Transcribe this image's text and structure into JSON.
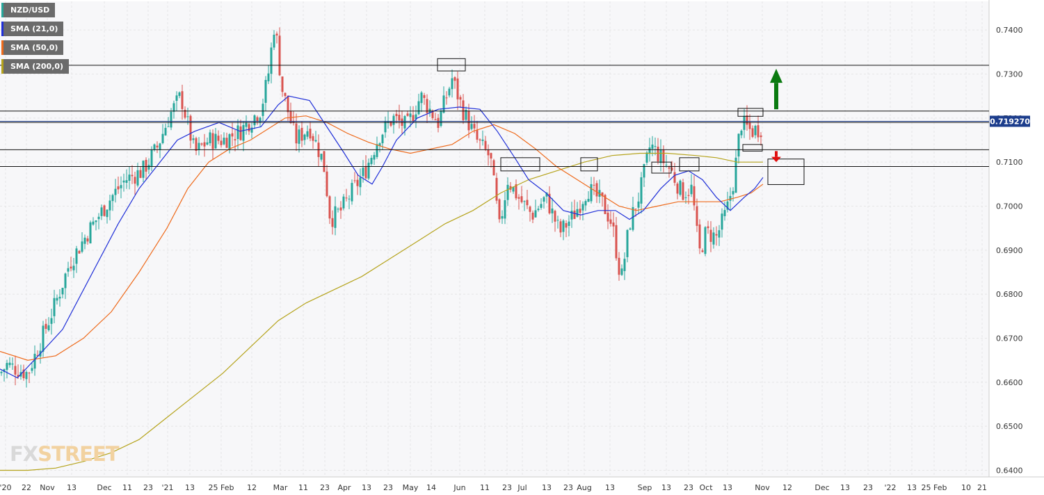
{
  "chart_data": {
    "type": "candlestick",
    "symbol": "NZD/USD",
    "price_label": "0.719270",
    "ylim": [
      0.6385,
      0.7465
    ],
    "y_ticks": [
      "0.7400",
      "0.7300",
      "0.7200",
      "0.7100",
      "0.7000",
      "0.6900",
      "0.6800",
      "0.6700",
      "0.6600",
      "0.6500",
      "0.6400"
    ],
    "x_ticks": [
      "'20",
      "22",
      "Nov",
      "13",
      "Dec",
      "11",
      "23",
      "'21",
      "13",
      "25 Feb",
      "12",
      "Mar",
      "11",
      "23",
      "Apr",
      "13",
      "23",
      "May",
      "14",
      "Jun",
      "11",
      "23",
      "Jul",
      "13",
      "23",
      "Aug",
      "13",
      "Sep",
      "13",
      "23",
      "Oct",
      "13",
      "Nov",
      "12",
      "Dec",
      "13",
      "23",
      "'22",
      "13",
      "25 Feb",
      "10",
      "21"
    ],
    "series": [
      {
        "name": "SMA (21,0)",
        "color": "#1f2fd8"
      },
      {
        "name": "SMA (50,0)",
        "color": "#ee6a1b"
      },
      {
        "name": "SMA (200,0)",
        "color": "#b5a31b"
      }
    ],
    "symbol_color": "#26a69a",
    "up_color": "#26a69a",
    "down_color": "#d9534f",
    "last_price": 0.71927,
    "horizontal_levels": [
      0.732,
      0.7216,
      0.719,
      0.7128,
      0.709
    ],
    "anchors": [
      [
        0,
        0.662
      ],
      [
        10,
        0.664
      ],
      [
        40,
        0.662
      ],
      [
        80,
        0.678
      ],
      [
        100,
        0.687
      ],
      [
        130,
        0.695
      ],
      [
        160,
        0.702
      ],
      [
        180,
        0.706
      ],
      [
        205,
        0.708
      ],
      [
        225,
        0.713
      ],
      [
        245,
        0.721
      ],
      [
        260,
        0.725
      ],
      [
        280,
        0.712
      ],
      [
        300,
        0.715
      ],
      [
        320,
        0.715
      ],
      [
        345,
        0.717
      ],
      [
        375,
        0.722
      ],
      [
        385,
        0.729
      ],
      [
        395,
        0.742
      ],
      [
        405,
        0.727
      ],
      [
        425,
        0.715
      ],
      [
        445,
        0.718
      ],
      [
        465,
        0.71
      ],
      [
        475,
        0.697
      ],
      [
        490,
        0.699
      ],
      [
        505,
        0.703
      ],
      [
        525,
        0.708
      ],
      [
        545,
        0.716
      ],
      [
        565,
        0.72
      ],
      [
        585,
        0.718
      ],
      [
        605,
        0.725
      ],
      [
        630,
        0.719
      ],
      [
        650,
        0.729
      ],
      [
        665,
        0.722
      ],
      [
        685,
        0.715
      ],
      [
        705,
        0.711
      ],
      [
        718,
        0.695
      ],
      [
        730,
        0.706
      ],
      [
        745,
        0.702
      ],
      [
        765,
        0.698
      ],
      [
        785,
        0.702
      ],
      [
        805,
        0.694
      ],
      [
        825,
        0.698
      ],
      [
        845,
        0.704
      ],
      [
        865,
        0.701
      ],
      [
        880,
        0.696
      ],
      [
        893,
        0.683
      ],
      [
        905,
        0.696
      ],
      [
        920,
        0.703
      ],
      [
        935,
        0.714
      ],
      [
        950,
        0.711
      ],
      [
        965,
        0.708
      ],
      [
        980,
        0.703
      ],
      [
        995,
        0.704
      ],
      [
        1005,
        0.689
      ],
      [
        1015,
        0.694
      ],
      [
        1030,
        0.693
      ],
      [
        1045,
        0.699
      ],
      [
        1055,
        0.706
      ],
      [
        1065,
        0.719
      ],
      [
        1080,
        0.717
      ],
      [
        1097,
        0.718
      ]
    ],
    "sma21": [
      [
        0,
        0.663
      ],
      [
        25,
        0.661
      ],
      [
        55,
        0.666
      ],
      [
        90,
        0.672
      ],
      [
        130,
        0.684
      ],
      [
        170,
        0.696
      ],
      [
        200,
        0.704
      ],
      [
        230,
        0.71
      ],
      [
        255,
        0.715
      ],
      [
        280,
        0.717
      ],
      [
        315,
        0.719
      ],
      [
        345,
        0.717
      ],
      [
        375,
        0.718
      ],
      [
        400,
        0.723
      ],
      [
        415,
        0.725
      ],
      [
        445,
        0.724
      ],
      [
        470,
        0.718
      ],
      [
        495,
        0.712
      ],
      [
        515,
        0.707
      ],
      [
        535,
        0.705
      ],
      [
        550,
        0.709
      ],
      [
        570,
        0.715
      ],
      [
        600,
        0.72
      ],
      [
        630,
        0.722
      ],
      [
        660,
        0.7225
      ],
      [
        690,
        0.722
      ],
      [
        715,
        0.717
      ],
      [
        740,
        0.711
      ],
      [
        760,
        0.706
      ],
      [
        785,
        0.703
      ],
      [
        810,
        0.699
      ],
      [
        835,
        0.698
      ],
      [
        860,
        0.699
      ],
      [
        885,
        0.699
      ],
      [
        905,
        0.697
      ],
      [
        925,
        0.699
      ],
      [
        950,
        0.704
      ],
      [
        970,
        0.707
      ],
      [
        990,
        0.708
      ],
      [
        1010,
        0.706
      ],
      [
        1030,
        0.702
      ],
      [
        1050,
        0.699
      ],
      [
        1070,
        0.702
      ],
      [
        1085,
        0.704
      ],
      [
        1097,
        0.7065
      ]
    ],
    "sma50": [
      [
        0,
        0.667
      ],
      [
        40,
        0.665
      ],
      [
        80,
        0.666
      ],
      [
        120,
        0.67
      ],
      [
        160,
        0.676
      ],
      [
        200,
        0.685
      ],
      [
        240,
        0.695
      ],
      [
        270,
        0.704
      ],
      [
        300,
        0.71
      ],
      [
        330,
        0.713
      ],
      [
        360,
        0.715
      ],
      [
        390,
        0.718
      ],
      [
        410,
        0.72
      ],
      [
        440,
        0.7205
      ],
      [
        470,
        0.719
      ],
      [
        500,
        0.7165
      ],
      [
        530,
        0.7145
      ],
      [
        560,
        0.713
      ],
      [
        590,
        0.712
      ],
      [
        620,
        0.713
      ],
      [
        650,
        0.714
      ],
      [
        680,
        0.717
      ],
      [
        710,
        0.7185
      ],
      [
        740,
        0.7165
      ],
      [
        770,
        0.713
      ],
      [
        800,
        0.709
      ],
      [
        830,
        0.706
      ],
      [
        860,
        0.703
      ],
      [
        890,
        0.7
      ],
      [
        915,
        0.699
      ],
      [
        945,
        0.7
      ],
      [
        975,
        0.701
      ],
      [
        1005,
        0.701
      ],
      [
        1035,
        0.701
      ],
      [
        1060,
        0.702
      ],
      [
        1080,
        0.703
      ],
      [
        1097,
        0.705
      ]
    ],
    "sma200": [
      [
        0,
        0.64
      ],
      [
        40,
        0.64
      ],
      [
        80,
        0.6405
      ],
      [
        120,
        0.642
      ],
      [
        160,
        0.644
      ],
      [
        200,
        0.647
      ],
      [
        240,
        0.652
      ],
      [
        280,
        0.657
      ],
      [
        320,
        0.662
      ],
      [
        360,
        0.668
      ],
      [
        400,
        0.674
      ],
      [
        440,
        0.678
      ],
      [
        480,
        0.681
      ],
      [
        520,
        0.684
      ],
      [
        560,
        0.688
      ],
      [
        600,
        0.692
      ],
      [
        640,
        0.696
      ],
      [
        680,
        0.699
      ],
      [
        720,
        0.703
      ],
      [
        760,
        0.706
      ],
      [
        800,
        0.708
      ],
      [
        840,
        0.71
      ],
      [
        880,
        0.7115
      ],
      [
        920,
        0.712
      ],
      [
        960,
        0.712
      ],
      [
        1000,
        0.7115
      ],
      [
        1030,
        0.711
      ],
      [
        1060,
        0.71
      ],
      [
        1097,
        0.71
      ]
    ]
  },
  "logo": {
    "fx": "FX",
    "street": "STREET"
  }
}
